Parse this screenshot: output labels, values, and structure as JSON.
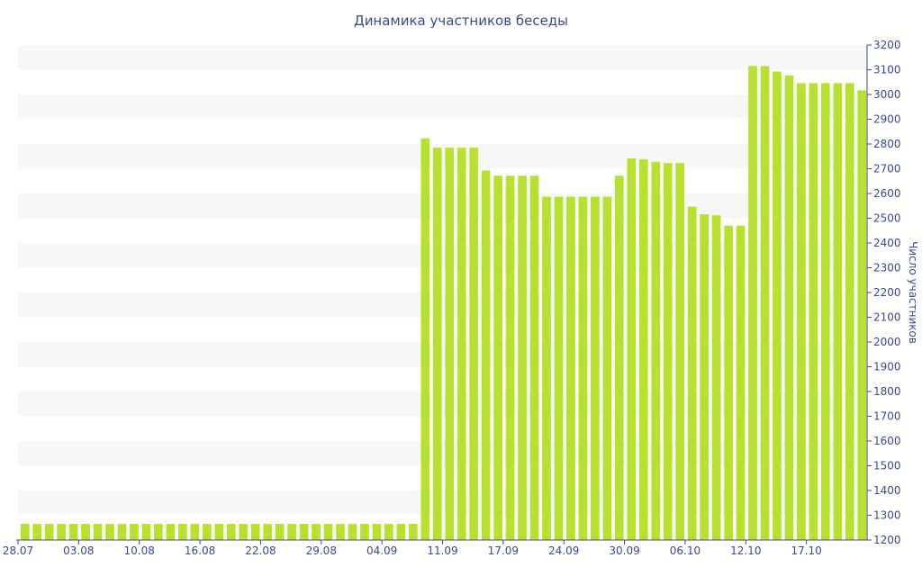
{
  "chart_data": {
    "type": "bar",
    "title": "Динамика участников беседы",
    "xlabel": "",
    "ylabel": "Число участников",
    "ylim": [
      1200,
      3200
    ],
    "yticks": [
      1200,
      1300,
      1400,
      1500,
      1600,
      1700,
      1800,
      1900,
      2000,
      2100,
      2200,
      2300,
      2400,
      2500,
      2600,
      2700,
      2800,
      2900,
      3000,
      3100,
      3200
    ],
    "x_tick_labels": [
      "28.07",
      "03.08",
      "10.08",
      "16.08",
      "22.08",
      "29.08",
      "04.09",
      "11.09",
      "17.09",
      "24.09",
      "30.09",
      "06.10",
      "12.10",
      "17.10"
    ],
    "values": [
      1265,
      1265,
      1265,
      1265,
      1265,
      1265,
      1265,
      1265,
      1265,
      1265,
      1265,
      1265,
      1265,
      1265,
      1265,
      1265,
      1265,
      1265,
      1265,
      1265,
      1265,
      1265,
      1265,
      1265,
      1265,
      1265,
      1265,
      1265,
      1265,
      1265,
      1265,
      1265,
      1265,
      2823,
      2785,
      2785,
      2785,
      2785,
      2693,
      2672,
      2672,
      2672,
      2672,
      2587,
      2587,
      2587,
      2587,
      2587,
      2587,
      2672,
      2742,
      2738,
      2728,
      2723,
      2723,
      2547,
      2516,
      2512,
      2470,
      2470,
      3115,
      3115,
      3093,
      3077,
      3046,
      3046,
      3046,
      3046,
      3046,
      3017
    ],
    "bar_color": "#b8e02e",
    "band_color": "#f7f7f7",
    "text_color": "#3b4a8a",
    "axis_position": "right",
    "grid": "alternating horizontal bands"
  }
}
